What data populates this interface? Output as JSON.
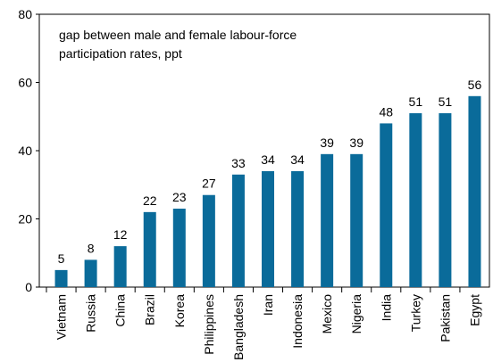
{
  "chart_data": {
    "type": "bar",
    "annotation": [
      "gap between male and female labour-force",
      "participation rates, ppt"
    ],
    "categories": [
      "Vietnam",
      "Russia",
      "China",
      "Brazil",
      "Korea",
      "Philippines",
      "Bangladesh",
      "Iran",
      "Indonesia",
      "Mexico",
      "Nigeria",
      "India",
      "Turkey",
      "Pakistan",
      "Egypt"
    ],
    "values": [
      5,
      8,
      12,
      22,
      23,
      27,
      33,
      34,
      34,
      39,
      39,
      48,
      51,
      51,
      56
    ],
    "color": "#0a6b9a",
    "ylim": [
      0,
      80
    ],
    "yticks": [
      0,
      20,
      40,
      60,
      80
    ],
    "grid": false
  }
}
